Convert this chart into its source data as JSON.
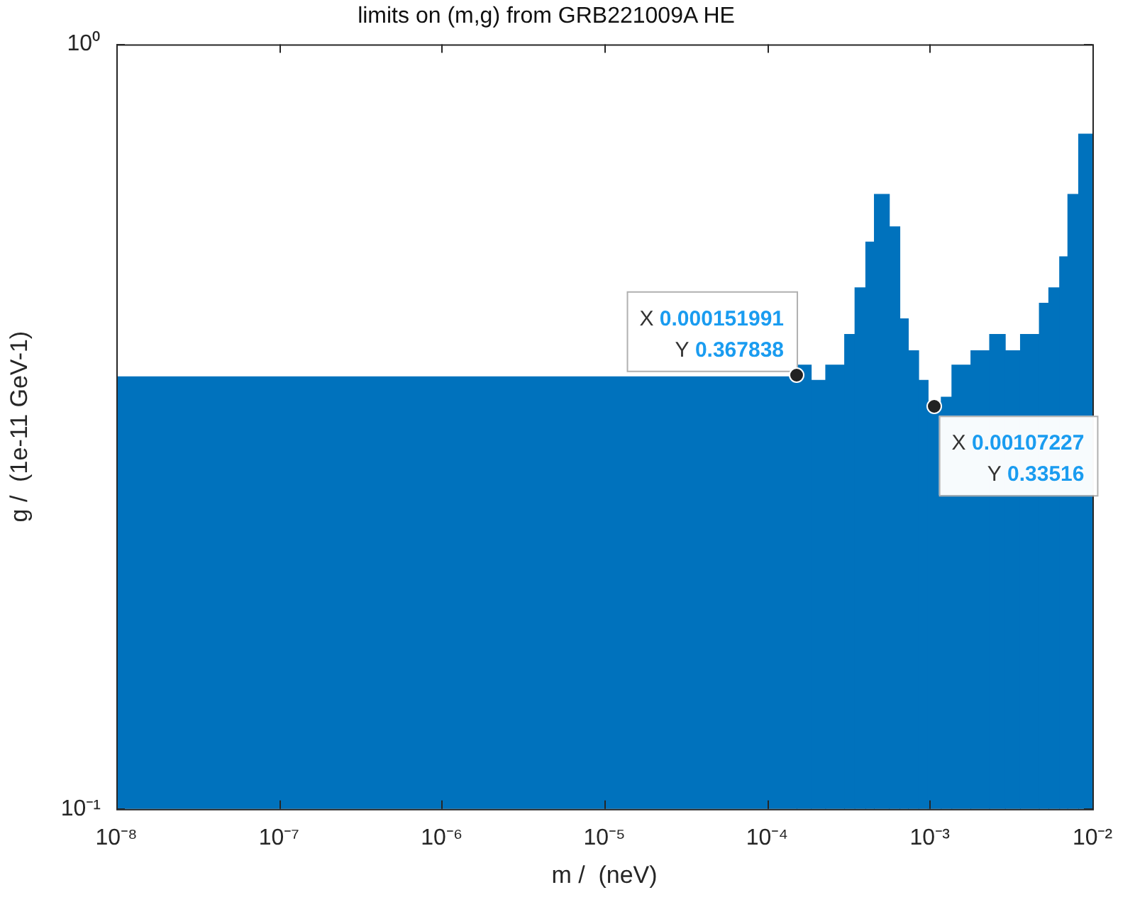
{
  "chart_data": {
    "type": "histogram",
    "title": "limits on (m,g) from GRB221009A HE",
    "xlabel": "m /  (neV)",
    "ylabel": "g /  (1e-11 GeV-1)",
    "color": "#0072bd",
    "bins": [
      1e-08,
      0.000151991,
      0.000186,
      0.000228,
      0.000298,
      0.000345,
      0.000402,
      0.000454,
      0.000562,
      0.000652,
      0.000735,
      0.000851,
      0.000973,
      0.00117,
      0.00136,
      0.00178,
      0.00232,
      0.0029,
      0.00359,
      0.00469,
      0.00536,
      0.00625,
      0.00702,
      0.00818,
      0.01
    ],
    "values": [
      0.367838,
      0.381,
      0.364,
      0.381,
      0.418,
      0.481,
      0.552,
      0.637,
      0.578,
      0.438,
      0.398,
      0.364,
      0.33516,
      0.346,
      0.381,
      0.398,
      0.418,
      0.398,
      0.418,
      0.459,
      0.481,
      0.528,
      0.637,
      0.764
    ],
    "log": "xy",
    "xlim": [
      1e-08,
      0.01
    ],
    "ylim": [
      0.1,
      1
    ],
    "xticks": [
      {
        "value": 1e-08,
        "label": "10⁻⁸"
      },
      {
        "value": 1e-07,
        "label": "10⁻⁷"
      },
      {
        "value": 1e-06,
        "label": "10⁻⁶"
      },
      {
        "value": 1e-05,
        "label": "10⁻⁵"
      },
      {
        "value": 0.0001,
        "label": "10⁻⁴"
      },
      {
        "value": 0.001,
        "label": "10⁻³"
      },
      {
        "value": 0.01,
        "label": "10⁻²"
      }
    ],
    "yticks": [
      {
        "value": 0.1,
        "label": "10⁻¹"
      },
      {
        "value": 1,
        "label": "10⁰"
      }
    ],
    "annotations": [
      {
        "text": "X 0.000151991\nY 0.367838",
        "x": 0.000151991,
        "y": 0.367838
      },
      {
        "text": "X 0.00107227\nY 0.33516",
        "x": 0.00107227,
        "y": 0.33516
      }
    ]
  }
}
